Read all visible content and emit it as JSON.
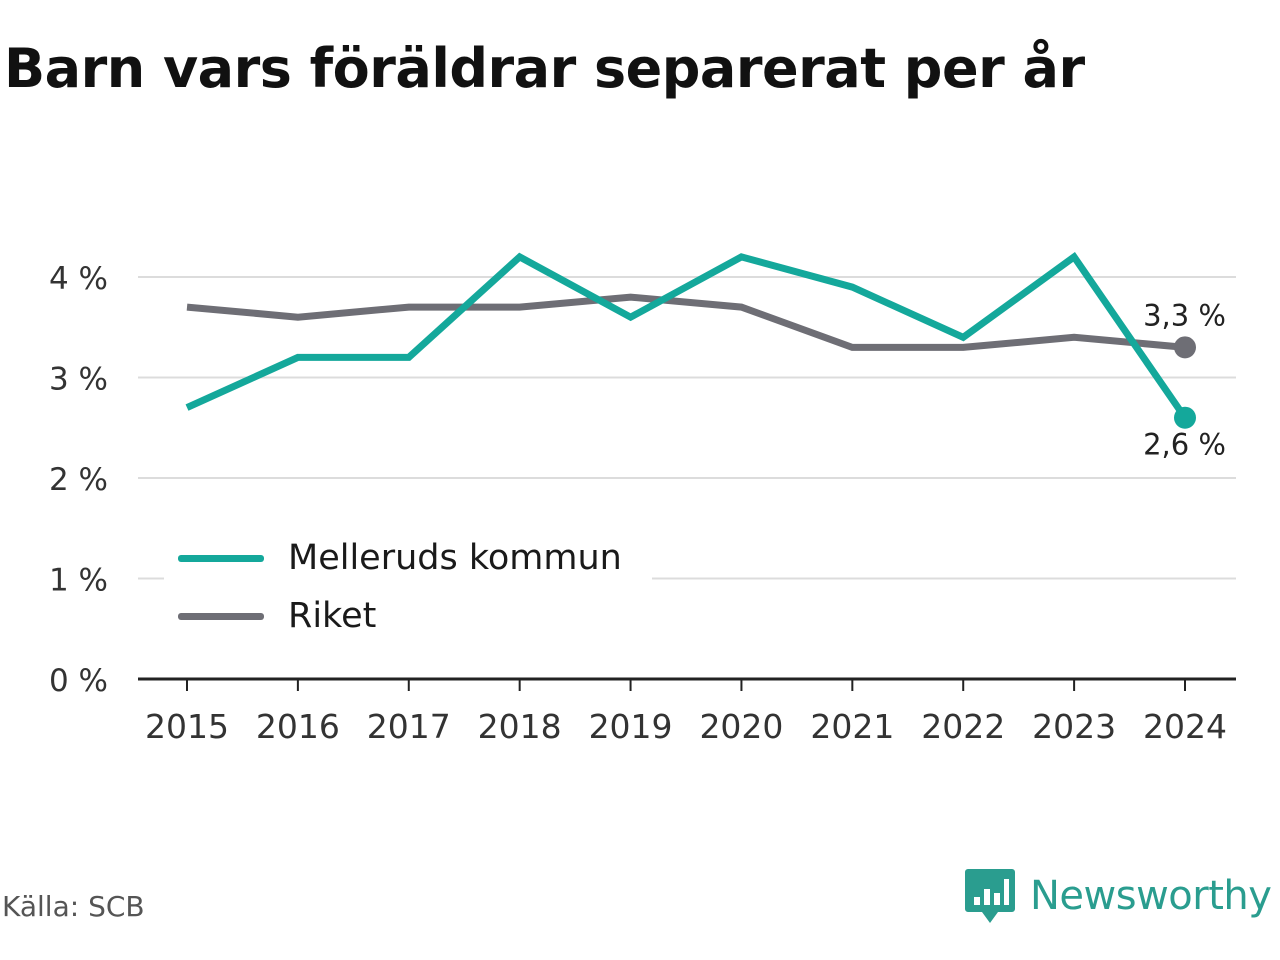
{
  "title": "Barn vars föräldrar separerat per år",
  "source": "Källa: SCB",
  "brand": {
    "name": "Newsworthy",
    "logo_icon": "bar-chart-speech-bubble-icon",
    "color": "#2a9d8f"
  },
  "chart_data": {
    "type": "line",
    "title": "Barn vars föräldrar separerat per år",
    "x": [
      "2015",
      "2016",
      "2017",
      "2018",
      "2019",
      "2020",
      "2021",
      "2022",
      "2023",
      "2024"
    ],
    "ylim": [
      0,
      4
    ],
    "yticks": [
      0,
      1,
      2,
      3,
      4
    ],
    "ytick_labels": [
      "0 %",
      "1 %",
      "2 %",
      "3 %",
      "4 %"
    ],
    "grid": true,
    "legend_position": "bottom-left",
    "series": [
      {
        "name": "Melleruds kommun",
        "color": "#14a89b",
        "values": [
          2.7,
          3.2,
          3.2,
          4.2,
          3.6,
          4.2,
          3.9,
          3.4,
          4.2,
          2.6
        ],
        "end_label": "2,6 %"
      },
      {
        "name": "Riket",
        "color": "#6e6e75",
        "values": [
          3.7,
          3.6,
          3.7,
          3.7,
          3.8,
          3.7,
          3.3,
          3.3,
          3.4,
          3.3
        ],
        "end_label": "3,3 %"
      }
    ]
  }
}
